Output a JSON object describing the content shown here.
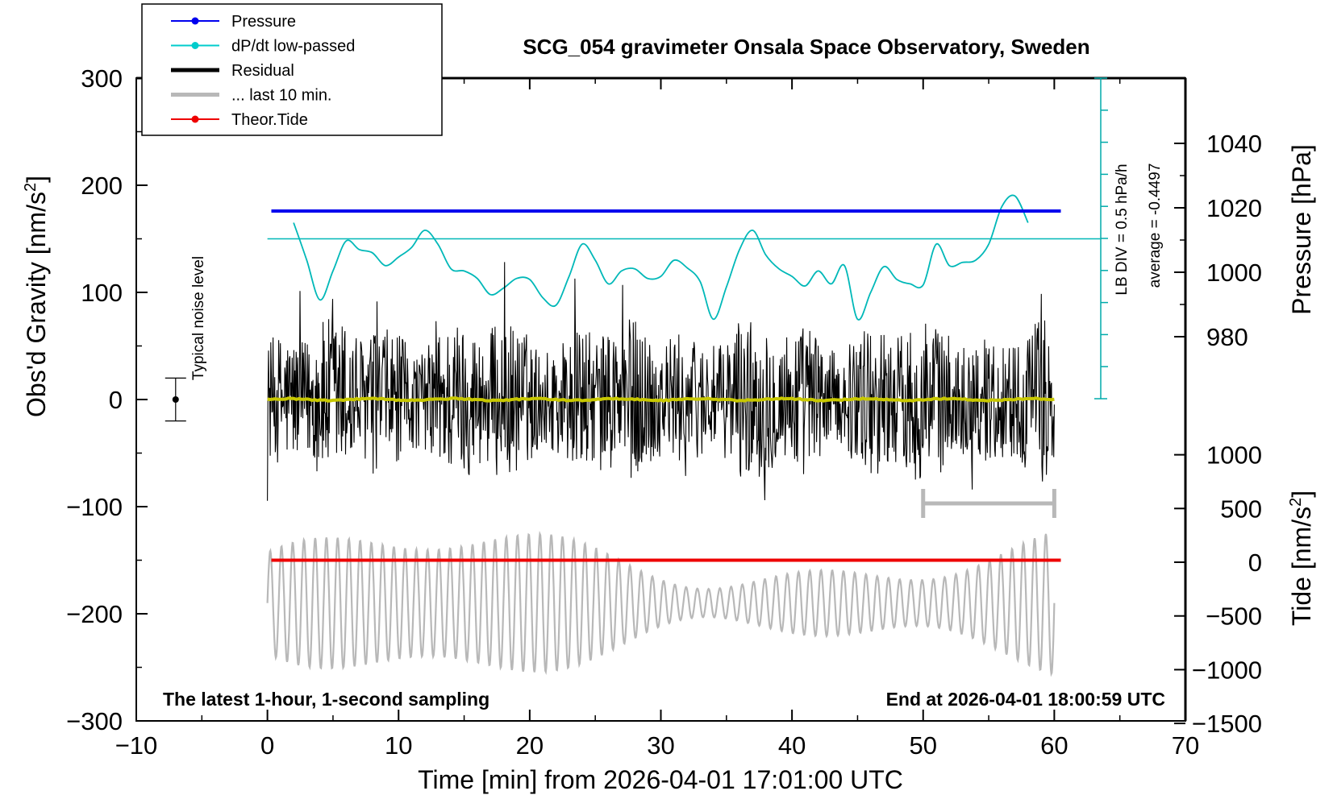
{
  "chart_data": {
    "type": "line",
    "title": "SCG_054 gravimeter Onsala Space Observatory, Sweden",
    "xlabel": "Time [min] from 2026-04-01 17:01:00 UTC",
    "ylabel": "Obs'd Gravity [nm/s",
    "ylabel_sup": "2",
    "ylabel_close": "]",
    "right_top_label": "Pressure [hPa]",
    "right_bottom_label": "Tide [nm/s",
    "right_bottom_sup": "2",
    "right_bottom_close": "]",
    "xlim": [
      -10,
      70
    ],
    "ylim": [
      -300,
      300
    ],
    "x_ticks": [
      "−10",
      "0",
      "10",
      "20",
      "30",
      "40",
      "50",
      "60",
      "70"
    ],
    "y_ticks": [
      "300",
      "200",
      "100",
      "0",
      "−100",
      "−200",
      "−300"
    ],
    "pressure_ticks": [
      "1040",
      "1020",
      "1000",
      "980"
    ],
    "pressure_values": [
      1040,
      1020,
      1000,
      980
    ],
    "tide_ticks": [
      "1000",
      "500",
      "0",
      "−500",
      "−1000",
      "−1500"
    ],
    "tide_values": [
      1000,
      500,
      0,
      -500,
      -1000,
      -1500
    ],
    "pressure_level_hPa": 1019,
    "theor_tide_level": -150,
    "dpdt_average_level": 150,
    "legend": [
      {
        "label": "Pressure",
        "color": "#0000ee",
        "marker": true,
        "width": 2
      },
      {
        "label": "dP/dt low-passed",
        "color": "#00cccc",
        "marker": true,
        "width": 2
      },
      {
        "label": "Residual",
        "color": "#000000",
        "marker": false,
        "width": 5
      },
      {
        "label": "... last 10 min.",
        "color": "#b8b8b8",
        "marker": false,
        "width": 5
      },
      {
        "label": "Theor.Tide",
        "color": "#ee0000",
        "marker": true,
        "width": 2
      }
    ],
    "dpdt_scale_label": "LB DIV = 0.5 hPa/h",
    "dpdt_average_label": "average = -0.4497",
    "noise_label": "Typical noise level",
    "noise_level": 20,
    "bottom_left_text": "The latest 1-hour, 1-second sampling",
    "bottom_right_text": "End at 2026-04-01 18:00:59 UTC",
    "last_10min_range": [
      50,
      60
    ],
    "dpdt_series": {
      "x": [
        2,
        3,
        4,
        5,
        6,
        7,
        8,
        9,
        10,
        11,
        12,
        13,
        14,
        15,
        16,
        17,
        18,
        19,
        20,
        21,
        22,
        23,
        24,
        25,
        26,
        27,
        28,
        29,
        30,
        31,
        32,
        33,
        34,
        35,
        36,
        37,
        38,
        39,
        40,
        41,
        42,
        43,
        44,
        45,
        46,
        47,
        48,
        49,
        50,
        51,
        52,
        53,
        54,
        55,
        56,
        57,
        58
      ],
      "y": [
        165,
        130,
        93,
        120,
        148,
        140,
        137,
        125,
        133,
        142,
        158,
        145,
        122,
        120,
        113,
        98,
        104,
        113,
        112,
        95,
        88,
        115,
        145,
        130,
        108,
        120,
        122,
        113,
        115,
        130,
        123,
        110,
        75,
        105,
        140,
        158,
        135,
        122,
        115,
        106,
        120,
        108,
        125,
        75,
        100,
        124,
        112,
        108,
        107,
        145,
        125,
        128,
        130,
        145,
        180,
        190,
        165
      ]
    },
    "colors": {
      "pressure": "#0000ee",
      "dpdt": "#00b8b8",
      "residual": "#000000",
      "smooth": "#c8c800",
      "last10": "#b8b8b8",
      "tide": "#ee0000"
    }
  }
}
